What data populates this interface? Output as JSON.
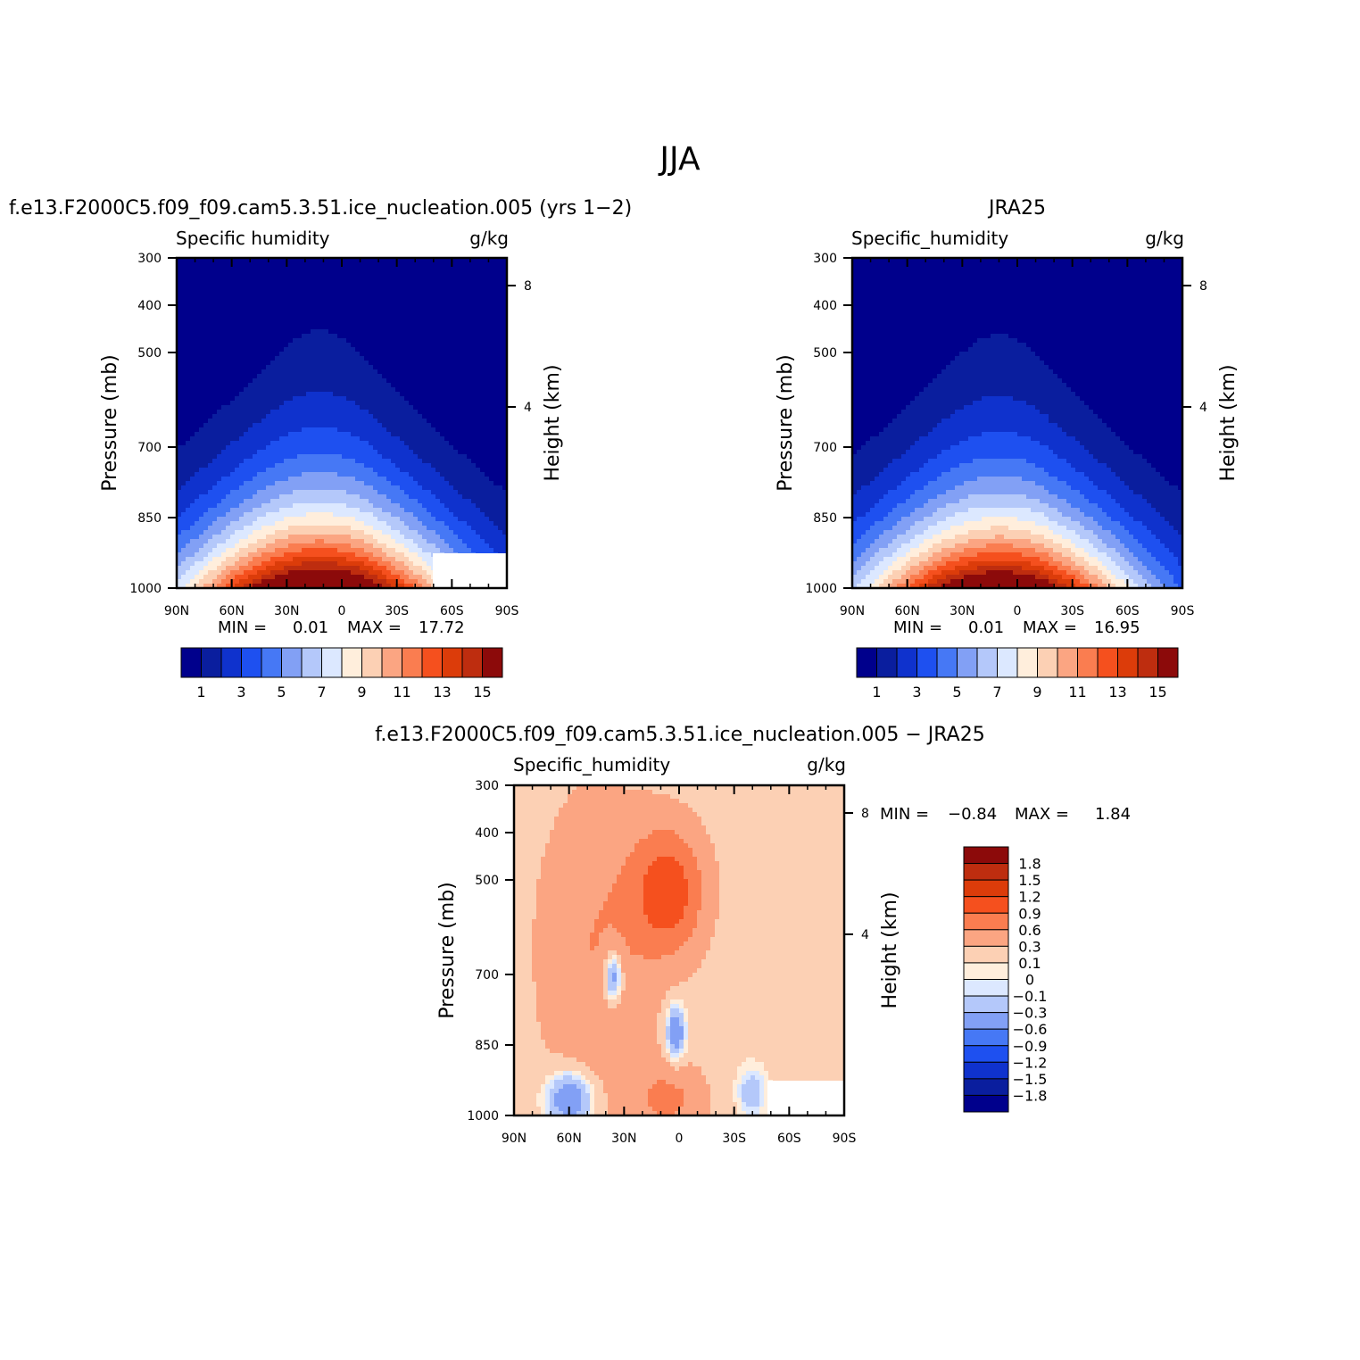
{
  "figure": {
    "title": "JJA"
  },
  "chart_data": [
    {
      "type": "heatmap",
      "title": "f.e13.F2000C5.f09_f09.cam5.3.51.ice_nucleation.005 (yrs 1−2)",
      "subtitle_left": "Specific humidity",
      "subtitle_right": "g/kg",
      "ylabel": "Pressure (mb)",
      "y2label": "Height (km)",
      "x_ticks": [
        "90N",
        "60N",
        "30N",
        "0",
        "30S",
        "60S",
        "90S"
      ],
      "y_ticks": [
        "300",
        "400",
        "500",
        "700",
        "850",
        "1000"
      ],
      "y2_ticks": [
        "8",
        "4"
      ],
      "ylim": [
        1000,
        300
      ],
      "stats": {
        "min_label": "MIN =",
        "min": "0.01",
        "max_label": "MAX =",
        "max": "17.72"
      },
      "colorbar": {
        "orientation": "horizontal",
        "labels": [
          "1",
          "3",
          "5",
          "7",
          "9",
          "11",
          "13",
          "15"
        ],
        "colors": [
          "#00008c",
          "#0a1e9e",
          "#0f32cd",
          "#1e50f0",
          "#4678f5",
          "#82a0f5",
          "#b4c8fa",
          "#dce8ff",
          "#ffeedc",
          "#fcd0b4",
          "#fba582",
          "#fa7d50",
          "#f5501e",
          "#dc3c0a",
          "#be2d0f",
          "#8c0a0a"
        ]
      },
      "levels": [
        1,
        2,
        3,
        4,
        5,
        6,
        7,
        8,
        9,
        10,
        11,
        12,
        13,
        14,
        15
      ]
    },
    {
      "type": "heatmap",
      "title": "JRA25",
      "subtitle_left": "Specific_humidity",
      "subtitle_right": "g/kg",
      "ylabel": "Pressure (mb)",
      "y2label": "Height (km)",
      "x_ticks": [
        "90N",
        "60N",
        "30N",
        "0",
        "30S",
        "60S",
        "90S"
      ],
      "y_ticks": [
        "300",
        "400",
        "500",
        "700",
        "850",
        "1000"
      ],
      "y2_ticks": [
        "8",
        "4"
      ],
      "ylim": [
        1000,
        300
      ],
      "stats": {
        "min_label": "MIN =",
        "min": "0.01",
        "max_label": "MAX =",
        "max": "16.95"
      },
      "colorbar": {
        "orientation": "horizontal",
        "labels": [
          "1",
          "3",
          "5",
          "7",
          "9",
          "11",
          "13",
          "15"
        ],
        "colors": [
          "#00008c",
          "#0a1e9e",
          "#0f32cd",
          "#1e50f0",
          "#4678f5",
          "#82a0f5",
          "#b4c8fa",
          "#dce8ff",
          "#ffeedc",
          "#fcd0b4",
          "#fba582",
          "#fa7d50",
          "#f5501e",
          "#dc3c0a",
          "#be2d0f",
          "#8c0a0a"
        ]
      },
      "levels": [
        1,
        2,
        3,
        4,
        5,
        6,
        7,
        8,
        9,
        10,
        11,
        12,
        13,
        14,
        15
      ]
    },
    {
      "type": "heatmap",
      "title": "f.e13.F2000C5.f09_f09.cam5.3.51.ice_nucleation.005 − JRA25",
      "subtitle_left": "Specific_humidity",
      "subtitle_right": "g/kg",
      "ylabel": "Pressure (mb)",
      "y2label": "Height (km)",
      "x_ticks": [
        "90N",
        "60N",
        "30N",
        "0",
        "30S",
        "60S",
        "90S"
      ],
      "y_ticks": [
        "300",
        "400",
        "500",
        "700",
        "850",
        "1000"
      ],
      "y2_ticks": [
        "8",
        "4"
      ],
      "ylim": [
        1000,
        300
      ],
      "stats": {
        "min_label": "MIN =",
        "min": "−0.84",
        "max_label": "MAX =",
        "max": "1.84"
      },
      "colorbar": {
        "orientation": "vertical",
        "labels": [
          "1.8",
          "1.5",
          "1.2",
          "0.9",
          "0.6",
          "0.3",
          "0.1",
          "0",
          "−0.1",
          "−0.3",
          "−0.6",
          "−0.9",
          "−1.2",
          "−1.5",
          "−1.8"
        ],
        "colors": [
          "#8c0a0a",
          "#be2d0f",
          "#dc3c0a",
          "#f5501e",
          "#fa7d50",
          "#fba582",
          "#fcd0b4",
          "#ffeedc",
          "#dce8ff",
          "#b4c8fa",
          "#82a0f5",
          "#4678f5",
          "#1e50f0",
          "#0f32cd",
          "#0a1e9e",
          "#00008c"
        ]
      },
      "levels": [
        -1.8,
        -1.5,
        -1.2,
        -0.9,
        -0.6,
        -0.3,
        -0.1,
        0,
        0.1,
        0.3,
        0.6,
        0.9,
        1.2,
        1.5,
        1.8
      ]
    }
  ]
}
